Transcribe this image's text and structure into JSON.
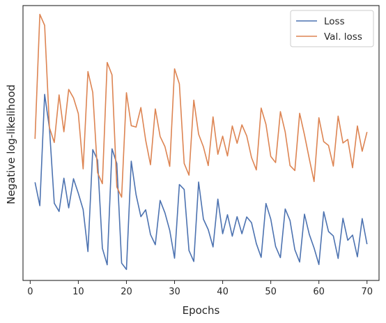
{
  "chart_data": {
    "type": "line",
    "title": "",
    "xlabel": "Epochs",
    "ylabel": "Negative log-likelihood",
    "xlim": [
      -1.5,
      72.5
    ],
    "ylim": [
      0,
      1
    ],
    "x_ticks": [
      0,
      10,
      20,
      30,
      40,
      50,
      60,
      70
    ],
    "x_tick_labels": [
      "0",
      "10",
      "20",
      "30",
      "40",
      "50",
      "60",
      "70"
    ],
    "y_ticks_shown": false,
    "grid": false,
    "legend_position": "top-right",
    "x": [
      1,
      2,
      3,
      4,
      5,
      6,
      7,
      8,
      9,
      10,
      11,
      12,
      13,
      14,
      15,
      16,
      17,
      18,
      19,
      20,
      21,
      22,
      23,
      24,
      25,
      26,
      27,
      28,
      29,
      30,
      31,
      32,
      33,
      34,
      35,
      36,
      37,
      38,
      39,
      40,
      41,
      42,
      43,
      44,
      45,
      46,
      47,
      48,
      49,
      50,
      51,
      52,
      53,
      54,
      55,
      56,
      57,
      58,
      59,
      60,
      61,
      62,
      63,
      64,
      65,
      66,
      67,
      68,
      69,
      70
    ],
    "series": [
      {
        "name": "Loss",
        "color": "#4c72b0",
        "values": [
          0.357,
          0.272,
          0.677,
          0.554,
          0.281,
          0.251,
          0.372,
          0.264,
          0.37,
          0.317,
          0.258,
          0.105,
          0.476,
          0.438,
          0.117,
          0.057,
          0.479,
          0.425,
          0.063,
          0.04,
          0.434,
          0.312,
          0.232,
          0.257,
          0.167,
          0.13,
          0.291,
          0.246,
          0.182,
          0.081,
          0.349,
          0.331,
          0.109,
          0.069,
          0.358,
          0.223,
          0.185,
          0.122,
          0.296,
          0.17,
          0.239,
          0.161,
          0.232,
          0.17,
          0.231,
          0.21,
          0.134,
          0.084,
          0.28,
          0.223,
          0.124,
          0.083,
          0.26,
          0.218,
          0.112,
          0.067,
          0.241,
          0.168,
          0.118,
          0.058,
          0.25,
          0.178,
          0.162,
          0.08,
          0.226,
          0.146,
          0.165,
          0.086,
          0.225,
          0.132
        ]
      },
      {
        "name": "Val. loss",
        "color": "#dd8452",
        "values": [
          0.515,
          0.968,
          0.928,
          0.556,
          0.502,
          0.675,
          0.541,
          0.695,
          0.664,
          0.607,
          0.406,
          0.76,
          0.684,
          0.392,
          0.352,
          0.793,
          0.748,
          0.34,
          0.303,
          0.683,
          0.563,
          0.558,
          0.629,
          0.51,
          0.421,
          0.624,
          0.524,
          0.487,
          0.415,
          0.77,
          0.715,
          0.426,
          0.383,
          0.656,
          0.532,
          0.486,
          0.418,
          0.595,
          0.459,
          0.525,
          0.453,
          0.562,
          0.499,
          0.566,
          0.526,
          0.447,
          0.402,
          0.627,
          0.568,
          0.451,
          0.429,
          0.614,
          0.54,
          0.418,
          0.4,
          0.608,
          0.53,
          0.443,
          0.36,
          0.592,
          0.505,
          0.491,
          0.416,
          0.598,
          0.5,
          0.513,
          0.41,
          0.562,
          0.47,
          0.54
        ]
      }
    ]
  }
}
